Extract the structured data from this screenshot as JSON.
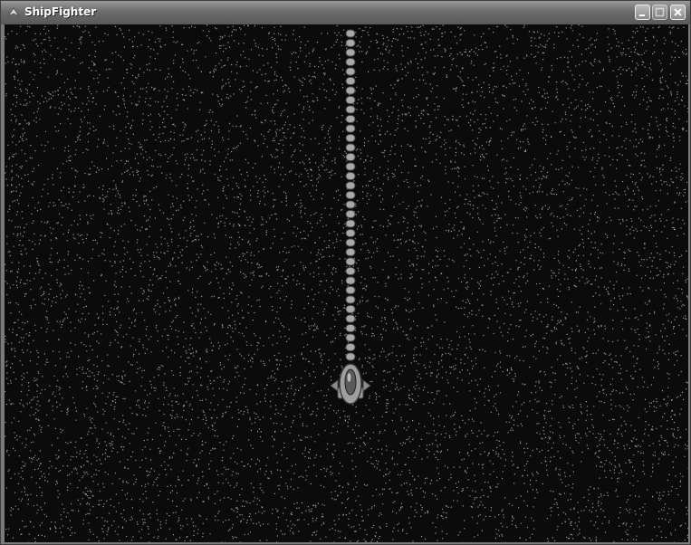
{
  "window": {
    "title": "ShipFighter"
  }
}
